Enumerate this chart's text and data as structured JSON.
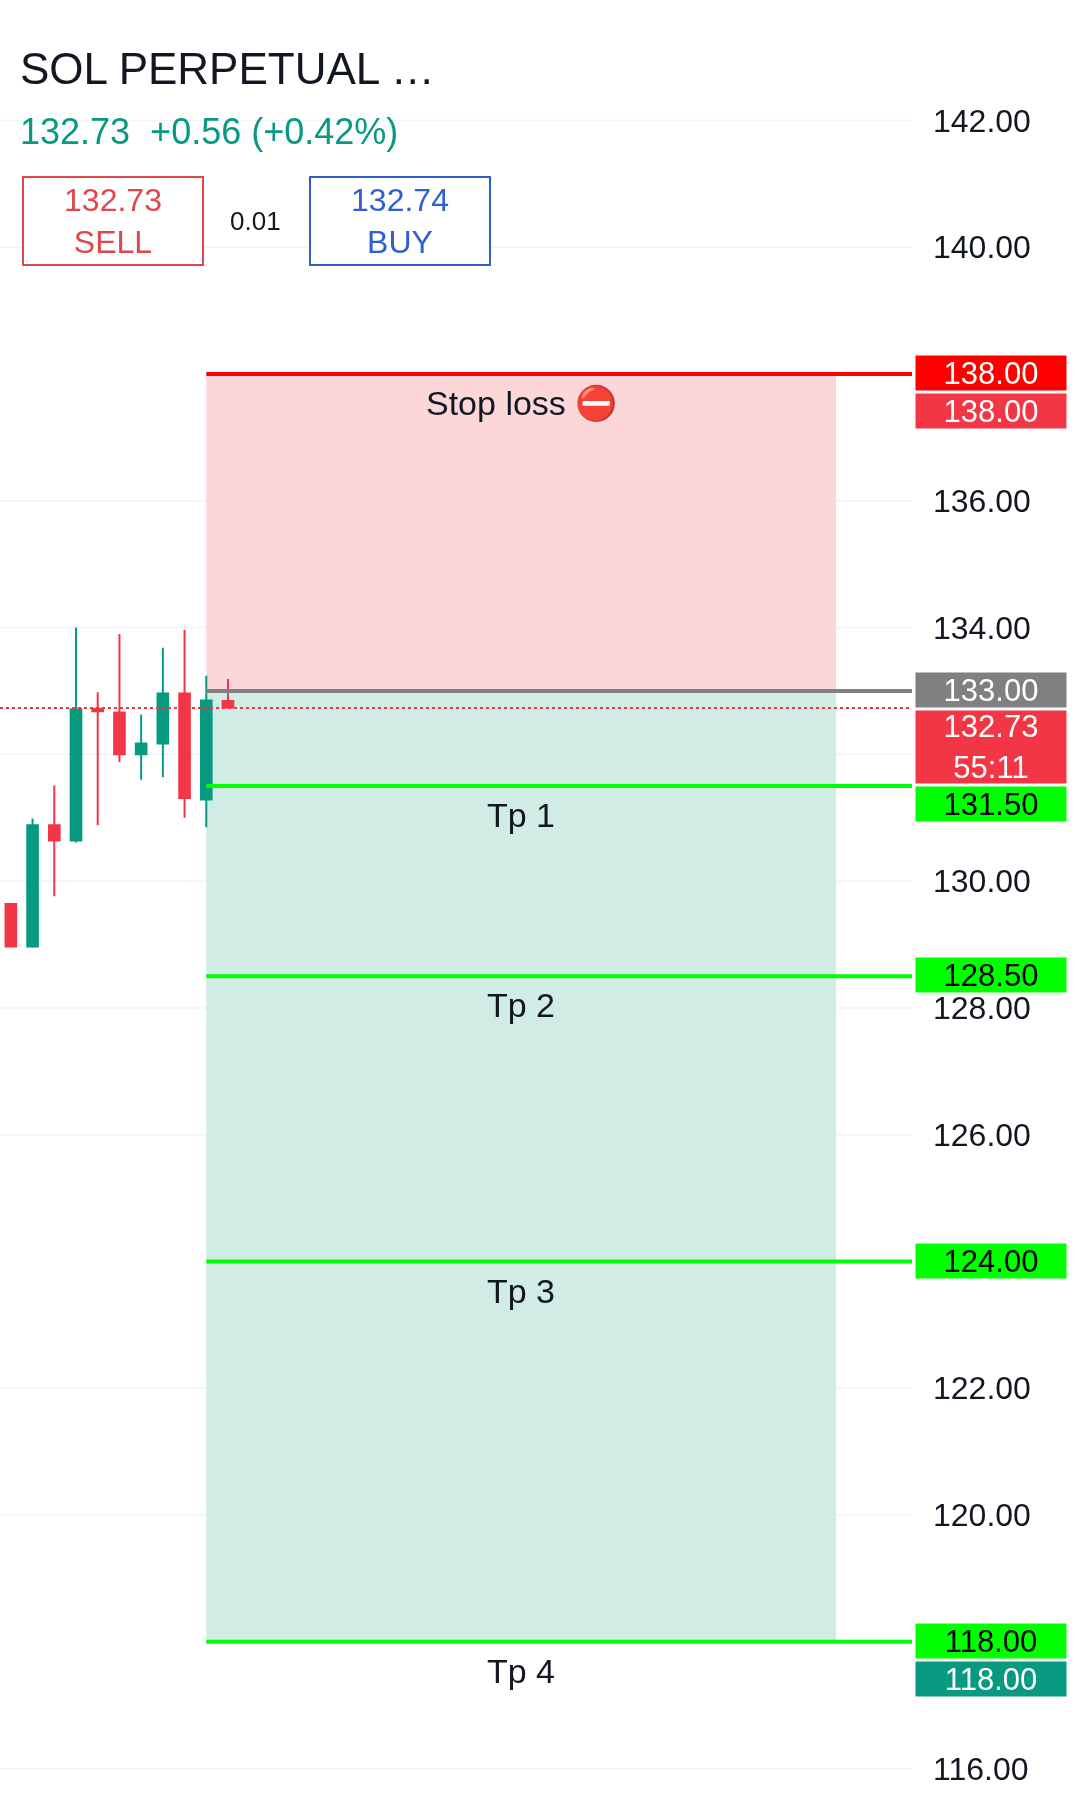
{
  "chart_data": {
    "type": "candlestick",
    "title": "SOL PERPETUAL …",
    "subtitle": "132.73  +0.56 (+0.42%)",
    "categories": [
      null,
      null,
      null,
      null,
      null,
      null,
      null,
      null,
      null,
      null,
      null,
      null,
      null,
      null,
      null,
      null,
      null,
      null,
      null,
      null,
      null,
      null,
      null,
      null,
      null,
      null,
      null,
      null,
      null,
      null,
      null,
      null,
      null,
      null,
      null,
      null,
      null,
      null,
      null,
      null,
      null,
      null
    ],
    "ohlc": [
      [
        129.64,
        129.64,
        128.97,
        128.97
      ],
      [
        128.97,
        130.99,
        128.95,
        130.88
      ],
      [
        130.88,
        131.51,
        129.76,
        130.64
      ],
      [
        130.64,
        134.0,
        130.61,
        132.71
      ],
      [
        132.72,
        132.98,
        130.88,
        132.68
      ],
      [
        132.66,
        133.9,
        131.88,
        132.0
      ],
      [
        132.0,
        132.63,
        131.6,
        132.17
      ],
      [
        132.17,
        133.68,
        131.64,
        132.96
      ],
      [
        132.96,
        133.96,
        131.0,
        131.31
      ],
      [
        131.29,
        133.24,
        130.85,
        132.85
      ],
      [
        132.84,
        133.19,
        132.74,
        132.74
      ],
      null,
      null,
      null,
      null,
      null,
      null,
      null,
      null,
      null,
      null,
      null,
      null,
      null,
      null,
      null,
      null,
      null,
      null,
      null,
      null,
      null,
      null,
      null,
      null,
      null,
      null,
      null,
      null,
      null,
      null,
      null
    ],
    "colors": [
      "#f23645",
      "#089981",
      "#f23645",
      "#089981",
      "#f23645",
      "#f23645",
      "#089981",
      "#089981",
      "#f23645",
      "#089981",
      "#f23645",
      null,
      null,
      null,
      null,
      null,
      null,
      null,
      null,
      null,
      null,
      null,
      null,
      null,
      null,
      null,
      null,
      null,
      null,
      null,
      null,
      null,
      null,
      null,
      null,
      null,
      null,
      null,
      null,
      null,
      null,
      null
    ],
    "ylim": [
      115.6,
      143.9
    ],
    "yticks": [
      {
        "value": 116,
        "label": "116.00"
      },
      {
        "value": 120,
        "label": "120.00"
      },
      {
        "value": 122,
        "label": "122.00"
      },
      {
        "value": 126,
        "label": "126.00"
      },
      {
        "value": 128,
        "label": "128.00"
      },
      {
        "value": 130,
        "label": "130.00"
      },
      {
        "value": 132,
        "label": null
      },
      {
        "value": 134,
        "label": "134.00"
      },
      {
        "value": 136,
        "label": "136.00"
      },
      {
        "value": 138,
        "label": null
      },
      {
        "value": 140,
        "label": "140.00"
      },
      {
        "value": 142,
        "label": "142.00"
      }
    ],
    "grid": "y",
    "bands": [
      {
        "axis": "y",
        "from": 133,
        "to": 138,
        "color": "#fcd7d9"
      },
      {
        "axis": "y",
        "from": 118,
        "to": 133,
        "color": "#d1ebe5"
      }
    ],
    "ref_lines": [
      {
        "axis": "y",
        "value": 138,
        "label": "Stop loss ⛔",
        "color": "#ff0000"
      },
      {
        "axis": "y",
        "value": 133,
        "color": "#808080"
      },
      {
        "axis": "y",
        "value": 132.73,
        "color": "#f23645",
        "line_style": "dotted"
      },
      {
        "axis": "y",
        "value": 131.5,
        "label": "Tp 1",
        "color": "#00ff00"
      },
      {
        "axis": "y",
        "value": 128.5,
        "label": "Tp 2",
        "color": "#00ff00"
      },
      {
        "axis": "y",
        "value": 124,
        "label": "Tp 3",
        "color": "#00ff00"
      },
      {
        "axis": "y",
        "value": 118,
        "label": "Tp 4",
        "color": "#00ff00"
      }
    ],
    "annotations": [
      "132.73\nSELL",
      "0.01",
      "132.74\nBUY",
      "138.00",
      "118.00",
      "138.00",
      "133.00",
      "132.73\n55:11",
      "131.50",
      "128.50",
      "124.00",
      "118.00"
    ]
  }
}
